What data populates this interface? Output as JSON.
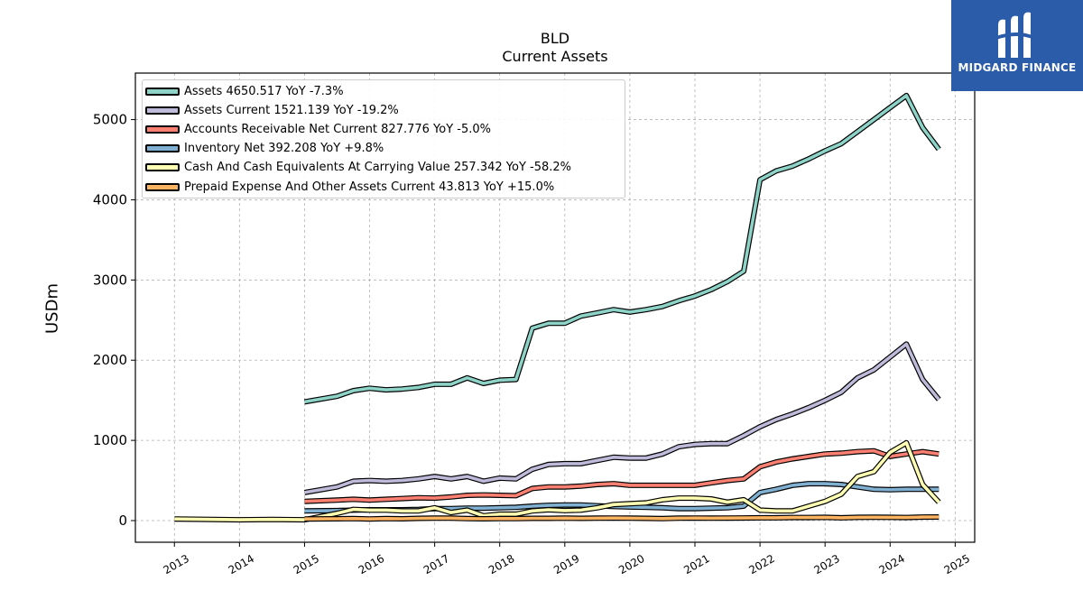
{
  "header": {
    "ticker": "BLD",
    "subtitle": "Current  Assets"
  },
  "logo": {
    "text": "MIDGARD FINANCE",
    "color": "#2a5caa"
  },
  "chart_data": {
    "type": "line",
    "title": "BLD",
    "subtitle": "Current  Assets",
    "xlabel": "",
    "ylabel": "USDm",
    "xlim": [
      2012.4,
      2025.3
    ],
    "ylim": [
      -270,
      5580
    ],
    "x_ticks": [
      2013,
      2014,
      2015,
      2016,
      2017,
      2018,
      2019,
      2020,
      2021,
      2022,
      2023,
      2024,
      2025
    ],
    "y_ticks": [
      0,
      1000,
      2000,
      3000,
      4000,
      5000
    ],
    "grid": true,
    "legend_position": "top-left",
    "series": [
      {
        "name": "Assets",
        "label": "Assets  4650.517 YoY -7.3%",
        "color": "#8dd3c7",
        "x": [
          2015.0,
          2015.5,
          2015.75,
          2016.0,
          2016.25,
          2016.5,
          2016.75,
          2017.0,
          2017.25,
          2017.5,
          2017.75,
          2018.0,
          2018.25,
          2018.5,
          2018.75,
          2019.0,
          2019.25,
          2019.5,
          2019.75,
          2020.0,
          2020.25,
          2020.5,
          2020.75,
          2021.0,
          2021.25,
          2021.5,
          2021.75,
          2022.0,
          2022.25,
          2022.5,
          2022.75,
          2023.0,
          2023.25,
          2023.5,
          2023.75,
          2024.0,
          2024.25,
          2024.5,
          2024.75
        ],
        "y": [
          1480,
          1550,
          1620,
          1650,
          1630,
          1640,
          1660,
          1700,
          1700,
          1780,
          1710,
          1750,
          1760,
          2400,
          2460,
          2460,
          2550,
          2590,
          2630,
          2600,
          2630,
          2670,
          2740,
          2800,
          2880,
          2980,
          3110,
          4250,
          4360,
          4420,
          4510,
          4610,
          4700,
          4850,
          5000,
          5150,
          5300,
          4900,
          4630
        ]
      },
      {
        "name": "Assets Current",
        "label": "Assets Current  1521.139 YoY -19.2%",
        "color": "#bebada",
        "x": [
          2015.0,
          2015.5,
          2015.75,
          2016.0,
          2016.25,
          2016.5,
          2016.75,
          2017.0,
          2017.25,
          2017.5,
          2017.75,
          2018.0,
          2018.25,
          2018.5,
          2018.75,
          2019.0,
          2019.25,
          2019.5,
          2019.75,
          2020.0,
          2020.25,
          2020.5,
          2020.75,
          2021.0,
          2021.25,
          2021.5,
          2021.75,
          2022.0,
          2022.25,
          2022.5,
          2022.75,
          2023.0,
          2023.25,
          2023.5,
          2023.75,
          2024.0,
          2024.25,
          2024.5,
          2024.75
        ],
        "y": [
          350,
          420,
          490,
          500,
          490,
          500,
          520,
          550,
          520,
          550,
          490,
          530,
          520,
          640,
          700,
          710,
          710,
          750,
          790,
          780,
          780,
          830,
          920,
          950,
          960,
          960,
          1060,
          1170,
          1260,
          1330,
          1410,
          1500,
          1600,
          1780,
          1880,
          2040,
          2200,
          1760,
          1510
        ]
      },
      {
        "name": "Accounts Receivable Net Current",
        "label": "Accounts Receivable Net Current  827.776 YoY -5.0%",
        "color": "#fb8072",
        "x": [
          2015.0,
          2015.5,
          2015.75,
          2016.0,
          2016.25,
          2016.5,
          2016.75,
          2017.0,
          2017.25,
          2017.5,
          2017.75,
          2018.0,
          2018.25,
          2018.5,
          2018.75,
          2019.0,
          2019.25,
          2019.5,
          2019.75,
          2020.0,
          2020.25,
          2020.5,
          2020.75,
          2021.0,
          2021.25,
          2021.5,
          2021.75,
          2022.0,
          2022.25,
          2022.5,
          2022.75,
          2023.0,
          2023.25,
          2023.5,
          2023.75,
          2024.0,
          2024.25,
          2024.5,
          2024.75
        ],
        "y": [
          240,
          255,
          265,
          255,
          265,
          275,
          285,
          280,
          295,
          315,
          320,
          315,
          310,
          400,
          420,
          420,
          430,
          450,
          460,
          440,
          440,
          440,
          440,
          440,
          470,
          500,
          520,
          670,
          730,
          770,
          800,
          830,
          840,
          860,
          870,
          800,
          830,
          860,
          830
        ]
      },
      {
        "name": "Inventory Net",
        "label": "Inventory Net  392.208 YoY +9.8%",
        "color": "#80b1d3",
        "x": [
          2015.0,
          2015.5,
          2015.75,
          2016.0,
          2016.25,
          2016.5,
          2016.75,
          2017.0,
          2017.25,
          2017.5,
          2017.75,
          2018.0,
          2018.25,
          2018.5,
          2018.75,
          2019.0,
          2019.25,
          2019.5,
          2019.75,
          2020.0,
          2020.25,
          2020.5,
          2020.75,
          2021.0,
          2021.25,
          2021.5,
          2021.75,
          2022.0,
          2022.25,
          2022.5,
          2022.75,
          2023.0,
          2023.25,
          2023.5,
          2023.75,
          2024.0,
          2024.25,
          2024.5,
          2024.75
        ],
        "y": [
          120,
          125,
          130,
          135,
          135,
          135,
          140,
          150,
          150,
          155,
          155,
          160,
          165,
          180,
          190,
          195,
          195,
          185,
          175,
          170,
          165,
          160,
          150,
          150,
          155,
          160,
          180,
          350,
          390,
          440,
          460,
          460,
          450,
          420,
          390,
          385,
          390,
          390,
          390
        ]
      },
      {
        "name": "Cash And Cash Equivalents At Carrying Value",
        "label": "Cash And Cash Equivalents At Carrying Value  257.342 YoY -58.2%",
        "color": "#ffffb3",
        "x": [
          2013.0,
          2014.0,
          2014.5,
          2015.0,
          2015.5,
          2015.75,
          2016.0,
          2016.25,
          2016.5,
          2016.75,
          2017.0,
          2017.25,
          2017.5,
          2017.75,
          2018.0,
          2018.25,
          2018.5,
          2018.75,
          2019.0,
          2019.25,
          2019.5,
          2019.75,
          2020.0,
          2020.25,
          2020.5,
          2020.75,
          2021.0,
          2021.25,
          2021.5,
          2021.75,
          2022.0,
          2022.25,
          2022.5,
          2022.75,
          2023.0,
          2023.25,
          2023.5,
          2023.75,
          2024.0,
          2024.25,
          2024.5,
          2024.75
        ],
        "y": [
          20,
          10,
          15,
          10,
          90,
          140,
          130,
          130,
          120,
          120,
          160,
          100,
          130,
          60,
          80,
          80,
          120,
          135,
          125,
          130,
          160,
          200,
          210,
          220,
          260,
          280,
          280,
          270,
          230,
          260,
          130,
          120,
          120,
          180,
          240,
          330,
          550,
          610,
          850,
          970,
          450,
          230
        ]
      },
      {
        "name": "Prepaid Expense And Other Assets Current",
        "label": "Prepaid Expense And Other Assets Current  43.813 YoY +15.0%",
        "color": "#fdb462",
        "x": [
          2015.0,
          2015.5,
          2015.75,
          2016.0,
          2016.25,
          2016.5,
          2016.75,
          2017.0,
          2017.25,
          2017.5,
          2017.75,
          2018.0,
          2018.25,
          2018.5,
          2018.75,
          2019.0,
          2019.25,
          2019.5,
          2019.75,
          2020.0,
          2020.25,
          2020.5,
          2020.75,
          2021.0,
          2021.25,
          2021.5,
          2021.75,
          2022.0,
          2022.25,
          2022.5,
          2022.75,
          2023.0,
          2023.25,
          2023.5,
          2023.75,
          2024.0,
          2024.25,
          2024.5,
          2024.75
        ],
        "y": [
          20,
          22,
          25,
          20,
          25,
          22,
          28,
          30,
          30,
          25,
          22,
          25,
          25,
          28,
          28,
          30,
          28,
          30,
          32,
          30,
          28,
          25,
          30,
          32,
          30,
          32,
          33,
          35,
          35,
          38,
          38,
          40,
          35,
          40,
          42,
          40,
          38,
          44,
          45
        ]
      }
    ]
  }
}
